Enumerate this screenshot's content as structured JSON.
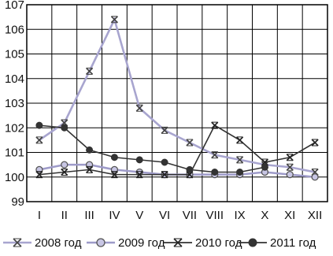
{
  "chart_data": {
    "type": "line",
    "title": "",
    "xlabel": "",
    "ylabel": "",
    "categories": [
      "I",
      "II",
      "III",
      "IV",
      "V",
      "VI",
      "VII",
      "VIII",
      "IX",
      "X",
      "XI",
      "XII"
    ],
    "ylim": [
      99,
      107
    ],
    "yticks": [
      99,
      100,
      101,
      102,
      103,
      104,
      105,
      106,
      107
    ],
    "grid": true,
    "legend_position": "bottom",
    "series": [
      {
        "name": "2008 год",
        "color": "#a8a5cf",
        "marker": "x-star",
        "values": [
          101.5,
          102.2,
          104.3,
          106.4,
          102.8,
          101.9,
          101.4,
          100.9,
          100.7,
          100.5,
          100.4,
          100.2
        ]
      },
      {
        "name": "2009 год",
        "color": "#9e9bc9",
        "marker": "circle-hollow",
        "values": [
          100.3,
          100.5,
          100.5,
          100.3,
          100.2,
          100.1,
          100.1,
          100.1,
          100.1,
          100.2,
          100.1,
          100.0
        ]
      },
      {
        "name": "2010 год",
        "color": "#333333",
        "marker": "x-star",
        "values": [
          100.1,
          100.2,
          100.3,
          100.1,
          100.1,
          100.1,
          100.1,
          102.1,
          101.5,
          100.6,
          100.8,
          101.4
        ]
      },
      {
        "name": "2011 год",
        "color": "#333333",
        "marker": "circle-filled",
        "values": [
          102.1,
          102.0,
          101.1,
          100.8,
          100.7,
          100.6,
          100.3,
          100.2,
          100.2,
          100.4,
          null,
          null
        ]
      }
    ]
  }
}
